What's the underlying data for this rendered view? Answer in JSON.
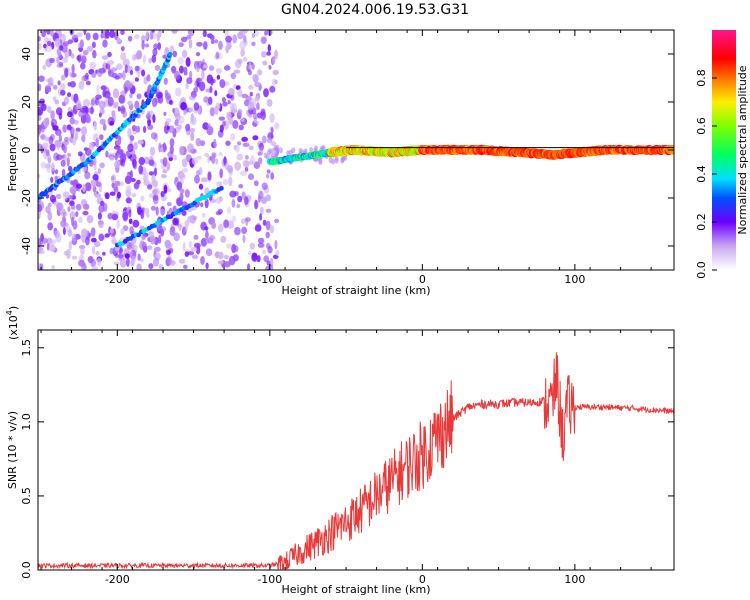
{
  "title": "GN04.2024.006.19.53.G31",
  "colors": {
    "snr_line": "#e83a3a",
    "frame": "#000000"
  },
  "colorbar": {
    "label": "Normalized spectral amplitude",
    "ticks": [
      "0.0",
      "0.2",
      "0.4",
      "0.6",
      "0.8"
    ],
    "tick_values": [
      0.0,
      0.2,
      0.4,
      0.6,
      0.8
    ],
    "range": [
      0,
      1
    ]
  },
  "chart_data": [
    {
      "type": "heatmap",
      "name": "spectrogram",
      "xlabel": "Height of straight line (km)",
      "ylabel": "Frequency (Hz)",
      "xlim": [
        -252,
        165
      ],
      "ylim": [
        -50,
        50
      ],
      "xticks": [
        -200,
        -100,
        0,
        100
      ],
      "yticks": [
        -40,
        -20,
        0,
        20,
        40
      ],
      "ridges": [
        {
          "x": [
            -252,
            -220,
            -180,
            -165
          ],
          "y": [
            -20,
            -5,
            20,
            40
          ]
        },
        {
          "x": [
            -200,
            -130
          ],
          "y": [
            -40,
            -15
          ]
        },
        {
          "x": [
            -100,
            -80,
            -60,
            -45,
            -20,
            0,
            40,
            85,
            120,
            165
          ],
          "y": [
            -5,
            -3,
            -1,
            0,
            -1,
            0,
            0,
            -2,
            0,
            0
          ]
        }
      ],
      "notes": "dense noisy spectral energy below -100 km, single narrow line near 0 Hz above -100 km"
    },
    {
      "type": "line",
      "name": "snr",
      "xlabel": "Height of straight line (km)",
      "ylabel": "SNR (10 * v/v)",
      "multiplier": "(x10",
      "multiplier_exp": "4",
      "xlim": [
        -252,
        165
      ],
      "ylim": [
        0,
        1.62
      ],
      "xticks": [
        -200,
        -100,
        0,
        100
      ],
      "yticks": [
        "0.0",
        "0.5",
        "1.0",
        "1.5"
      ],
      "ytick_values": [
        0.0,
        0.5,
        1.0,
        1.5
      ],
      "series": [
        {
          "x": [
            -252,
            -200,
            -150,
            -100,
            -90,
            -80,
            -70,
            -60,
            -50,
            -40,
            -30,
            -20,
            -10,
            0,
            10,
            20,
            30,
            40,
            50,
            60,
            70,
            80,
            85,
            88,
            92,
            95,
            100,
            120,
            140,
            165
          ],
          "y": [
            0.03,
            0.03,
            0.03,
            0.03,
            0.05,
            0.12,
            0.18,
            0.25,
            0.32,
            0.4,
            0.5,
            0.6,
            0.7,
            0.78,
            0.9,
            1.02,
            1.1,
            1.12,
            1.12,
            1.13,
            1.13,
            1.14,
            1.12,
            1.3,
            0.9,
            1.1,
            1.1,
            1.1,
            1.09,
            1.07
          ]
        }
      ]
    }
  ]
}
